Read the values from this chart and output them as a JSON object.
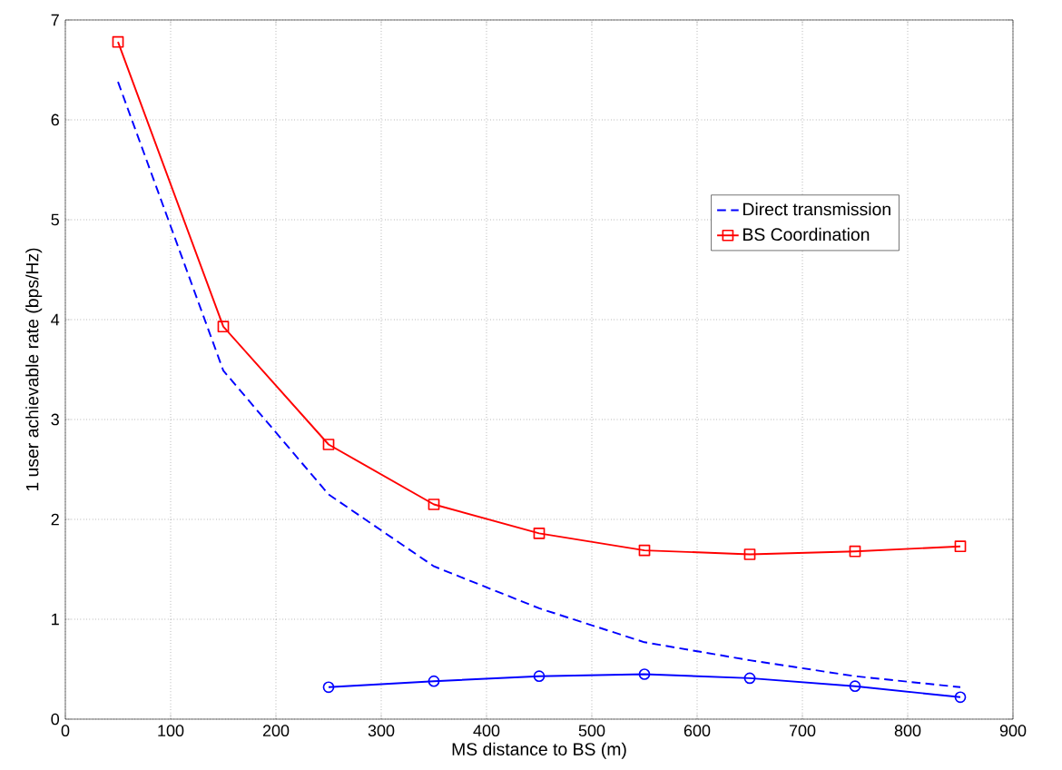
{
  "chart_data": {
    "type": "line",
    "xlabel": "MS distance to BS (m)",
    "ylabel": "1 user achievable rate (bps/Hz)",
    "xlim": [
      0,
      900
    ],
    "ylim": [
      0,
      7
    ],
    "xticks": [
      0,
      100,
      200,
      300,
      400,
      500,
      600,
      700,
      800,
      900
    ],
    "yticks": [
      0,
      1,
      2,
      3,
      4,
      5,
      6,
      7
    ],
    "grid": true,
    "legend": "top right",
    "series": [
      {
        "name": "Direct transmission",
        "color": "#0000ff",
        "line_style": "dashed",
        "marker": "none",
        "x": [
          50,
          150,
          250,
          350,
          450,
          550,
          650,
          750,
          850
        ],
        "values": [
          6.38,
          3.49,
          2.25,
          1.53,
          1.11,
          0.77,
          0.59,
          0.43,
          0.32
        ]
      },
      {
        "name": "BS Coordination",
        "color": "#ff0000",
        "line_style": "solid",
        "marker": "square",
        "x": [
          50,
          150,
          250,
          350,
          450,
          550,
          650,
          750,
          850
        ],
        "values": [
          6.78,
          3.93,
          2.75,
          2.15,
          1.86,
          1.69,
          1.65,
          1.68,
          1.73
        ]
      },
      {
        "color": "#0000ff",
        "line_style": "solid",
        "marker": "circle",
        "x": [
          250,
          350,
          450,
          550,
          650,
          750,
          850
        ],
        "values": [
          0.32,
          0.38,
          0.43,
          0.45,
          0.41,
          0.33,
          0.22
        ]
      }
    ]
  }
}
